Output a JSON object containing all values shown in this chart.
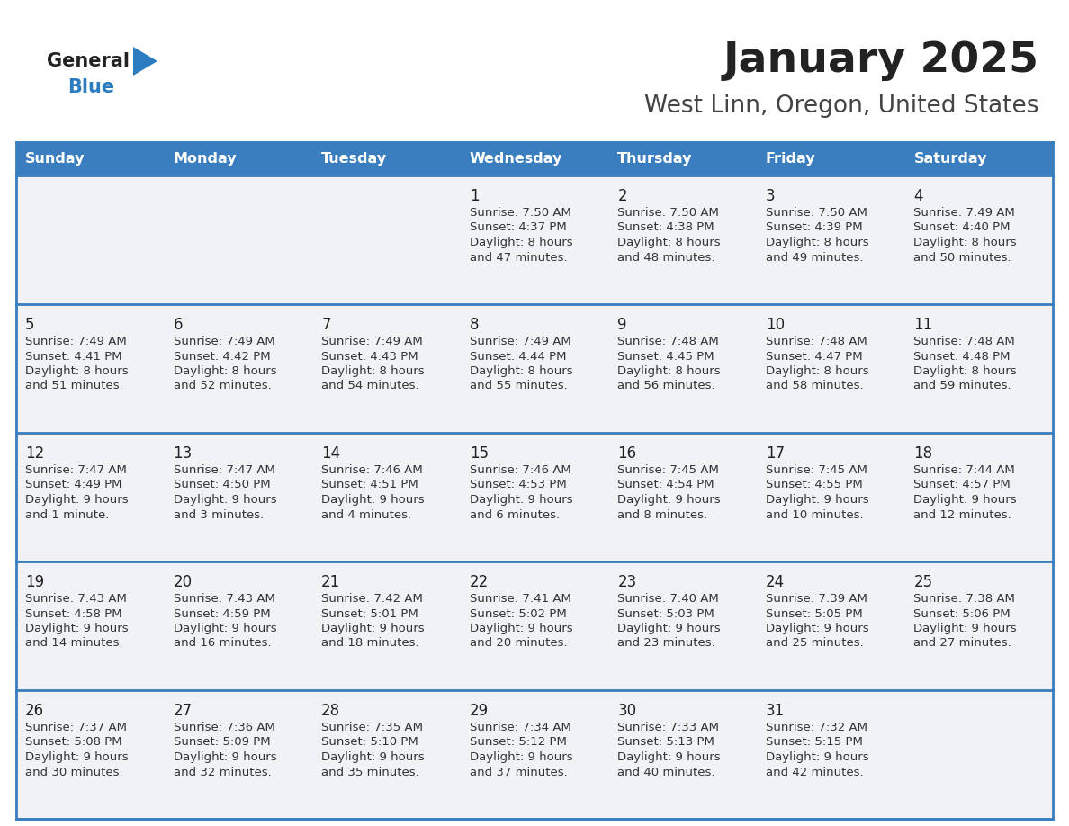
{
  "title": "January 2025",
  "subtitle": "West Linn, Oregon, United States",
  "header_color": "#3a7ebf",
  "header_text_color": "#ffffff",
  "cell_bg": "#f0f2f5",
  "border_color": "#3a7ebf",
  "text_color": "#333333",
  "day_num_color": "#222222",
  "day_headers": [
    "Sunday",
    "Monday",
    "Tuesday",
    "Wednesday",
    "Thursday",
    "Friday",
    "Saturday"
  ],
  "title_color": "#222222",
  "subtitle_color": "#444444",
  "logo_general_color": "#222222",
  "logo_blue_color": "#2b7dc0",
  "logo_triangle_color": "#2b7dc0",
  "days": [
    {
      "day": 1,
      "col": 3,
      "row": 0,
      "sunrise": "7:50 AM",
      "sunset": "4:37 PM",
      "daylight_h": "8 hours",
      "daylight_m": "47 minutes"
    },
    {
      "day": 2,
      "col": 4,
      "row": 0,
      "sunrise": "7:50 AM",
      "sunset": "4:38 PM",
      "daylight_h": "8 hours",
      "daylight_m": "48 minutes"
    },
    {
      "day": 3,
      "col": 5,
      "row": 0,
      "sunrise": "7:50 AM",
      "sunset": "4:39 PM",
      "daylight_h": "8 hours",
      "daylight_m": "49 minutes"
    },
    {
      "day": 4,
      "col": 6,
      "row": 0,
      "sunrise": "7:49 AM",
      "sunset": "4:40 PM",
      "daylight_h": "8 hours",
      "daylight_m": "50 minutes"
    },
    {
      "day": 5,
      "col": 0,
      "row": 1,
      "sunrise": "7:49 AM",
      "sunset": "4:41 PM",
      "daylight_h": "8 hours",
      "daylight_m": "51 minutes"
    },
    {
      "day": 6,
      "col": 1,
      "row": 1,
      "sunrise": "7:49 AM",
      "sunset": "4:42 PM",
      "daylight_h": "8 hours",
      "daylight_m": "52 minutes"
    },
    {
      "day": 7,
      "col": 2,
      "row": 1,
      "sunrise": "7:49 AM",
      "sunset": "4:43 PM",
      "daylight_h": "8 hours",
      "daylight_m": "54 minutes"
    },
    {
      "day": 8,
      "col": 3,
      "row": 1,
      "sunrise": "7:49 AM",
      "sunset": "4:44 PM",
      "daylight_h": "8 hours",
      "daylight_m": "55 minutes"
    },
    {
      "day": 9,
      "col": 4,
      "row": 1,
      "sunrise": "7:48 AM",
      "sunset": "4:45 PM",
      "daylight_h": "8 hours",
      "daylight_m": "56 minutes"
    },
    {
      "day": 10,
      "col": 5,
      "row": 1,
      "sunrise": "7:48 AM",
      "sunset": "4:47 PM",
      "daylight_h": "8 hours",
      "daylight_m": "58 minutes"
    },
    {
      "day": 11,
      "col": 6,
      "row": 1,
      "sunrise": "7:48 AM",
      "sunset": "4:48 PM",
      "daylight_h": "8 hours",
      "daylight_m": "59 minutes"
    },
    {
      "day": 12,
      "col": 0,
      "row": 2,
      "sunrise": "7:47 AM",
      "sunset": "4:49 PM",
      "daylight_h": "9 hours",
      "daylight_m": "1 minute"
    },
    {
      "day": 13,
      "col": 1,
      "row": 2,
      "sunrise": "7:47 AM",
      "sunset": "4:50 PM",
      "daylight_h": "9 hours",
      "daylight_m": "3 minutes"
    },
    {
      "day": 14,
      "col": 2,
      "row": 2,
      "sunrise": "7:46 AM",
      "sunset": "4:51 PM",
      "daylight_h": "9 hours",
      "daylight_m": "4 minutes"
    },
    {
      "day": 15,
      "col": 3,
      "row": 2,
      "sunrise": "7:46 AM",
      "sunset": "4:53 PM",
      "daylight_h": "9 hours",
      "daylight_m": "6 minutes"
    },
    {
      "day": 16,
      "col": 4,
      "row": 2,
      "sunrise": "7:45 AM",
      "sunset": "4:54 PM",
      "daylight_h": "9 hours",
      "daylight_m": "8 minutes"
    },
    {
      "day": 17,
      "col": 5,
      "row": 2,
      "sunrise": "7:45 AM",
      "sunset": "4:55 PM",
      "daylight_h": "9 hours",
      "daylight_m": "10 minutes"
    },
    {
      "day": 18,
      "col": 6,
      "row": 2,
      "sunrise": "7:44 AM",
      "sunset": "4:57 PM",
      "daylight_h": "9 hours",
      "daylight_m": "12 minutes"
    },
    {
      "day": 19,
      "col": 0,
      "row": 3,
      "sunrise": "7:43 AM",
      "sunset": "4:58 PM",
      "daylight_h": "9 hours",
      "daylight_m": "14 minutes"
    },
    {
      "day": 20,
      "col": 1,
      "row": 3,
      "sunrise": "7:43 AM",
      "sunset": "4:59 PM",
      "daylight_h": "9 hours",
      "daylight_m": "16 minutes"
    },
    {
      "day": 21,
      "col": 2,
      "row": 3,
      "sunrise": "7:42 AM",
      "sunset": "5:01 PM",
      "daylight_h": "9 hours",
      "daylight_m": "18 minutes"
    },
    {
      "day": 22,
      "col": 3,
      "row": 3,
      "sunrise": "7:41 AM",
      "sunset": "5:02 PM",
      "daylight_h": "9 hours",
      "daylight_m": "20 minutes"
    },
    {
      "day": 23,
      "col": 4,
      "row": 3,
      "sunrise": "7:40 AM",
      "sunset": "5:03 PM",
      "daylight_h": "9 hours",
      "daylight_m": "23 minutes"
    },
    {
      "day": 24,
      "col": 5,
      "row": 3,
      "sunrise": "7:39 AM",
      "sunset": "5:05 PM",
      "daylight_h": "9 hours",
      "daylight_m": "25 minutes"
    },
    {
      "day": 25,
      "col": 6,
      "row": 3,
      "sunrise": "7:38 AM",
      "sunset": "5:06 PM",
      "daylight_h": "9 hours",
      "daylight_m": "27 minutes"
    },
    {
      "day": 26,
      "col": 0,
      "row": 4,
      "sunrise": "7:37 AM",
      "sunset": "5:08 PM",
      "daylight_h": "9 hours",
      "daylight_m": "30 minutes"
    },
    {
      "day": 27,
      "col": 1,
      "row": 4,
      "sunrise": "7:36 AM",
      "sunset": "5:09 PM",
      "daylight_h": "9 hours",
      "daylight_m": "32 minutes"
    },
    {
      "day": 28,
      "col": 2,
      "row": 4,
      "sunrise": "7:35 AM",
      "sunset": "5:10 PM",
      "daylight_h": "9 hours",
      "daylight_m": "35 minutes"
    },
    {
      "day": 29,
      "col": 3,
      "row": 4,
      "sunrise": "7:34 AM",
      "sunset": "5:12 PM",
      "daylight_h": "9 hours",
      "daylight_m": "37 minutes"
    },
    {
      "day": 30,
      "col": 4,
      "row": 4,
      "sunrise": "7:33 AM",
      "sunset": "5:13 PM",
      "daylight_h": "9 hours",
      "daylight_m": "40 minutes"
    },
    {
      "day": 31,
      "col": 5,
      "row": 4,
      "sunrise": "7:32 AM",
      "sunset": "5:15 PM",
      "daylight_h": "9 hours",
      "daylight_m": "42 minutes"
    }
  ]
}
